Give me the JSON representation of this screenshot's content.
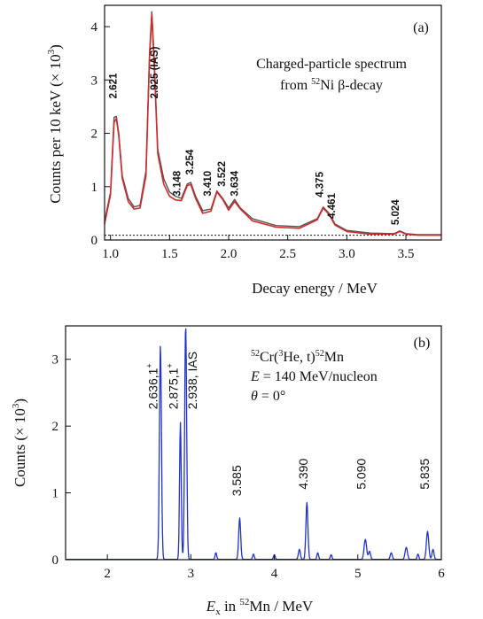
{
  "chart_data": [
    {
      "type": "line",
      "panel_label": "(a)",
      "title_line1": "Charged-particle spectrum",
      "title_line2_pre": "from ",
      "title_line2_sup": "52",
      "title_line2_post": "Ni β-decay",
      "xlabel": "Decay energy / MeV",
      "ylabel_text": "Counts per 10 keV (× 10",
      "ylabel_sup": "3",
      "ylabel_close": ")",
      "xlim": [
        0.95,
        3.8
      ],
      "ylim": [
        0,
        4.4
      ],
      "xticks": [
        1.0,
        1.5,
        2.0,
        2.5,
        3.0,
        3.5
      ],
      "xticklabels": [
        "1.0",
        "1.5",
        "2.0",
        "2.5",
        "3.0",
        "3.5"
      ],
      "yticks": [
        0,
        1,
        2,
        3,
        4
      ],
      "yticklabels": [
        "0",
        "1",
        "2",
        "3",
        "4"
      ],
      "background_level": 0.09,
      "series": [
        {
          "color": "#555555",
          "x": [
            0.95,
            1.0,
            1.03,
            1.05,
            1.07,
            1.1,
            1.15,
            1.2,
            1.25,
            1.3,
            1.33,
            1.35,
            1.37,
            1.4,
            1.45,
            1.5,
            1.55,
            1.6,
            1.65,
            1.68,
            1.72,
            1.78,
            1.85,
            1.9,
            1.95,
            2.0,
            2.05,
            2.1,
            2.2,
            2.4,
            2.6,
            2.75,
            2.8,
            2.85,
            2.9,
            3.0,
            3.2,
            3.4,
            3.45,
            3.5,
            3.6,
            3.8
          ],
          "y": [
            0.35,
            0.9,
            2.3,
            2.32,
            2.0,
            1.2,
            0.78,
            0.62,
            0.65,
            1.3,
            3.5,
            4.28,
            3.4,
            1.7,
            1.15,
            0.9,
            0.82,
            0.78,
            1.05,
            1.08,
            0.82,
            0.55,
            0.58,
            0.92,
            0.78,
            0.6,
            0.76,
            0.6,
            0.4,
            0.27,
            0.25,
            0.4,
            0.62,
            0.5,
            0.3,
            0.18,
            0.13,
            0.12,
            0.17,
            0.12,
            0.1,
            0.1
          ]
        },
        {
          "color": "#d22b2b",
          "x": [
            0.95,
            1.0,
            1.03,
            1.05,
            1.07,
            1.1,
            1.15,
            1.2,
            1.25,
            1.3,
            1.33,
            1.35,
            1.37,
            1.4,
            1.45,
            1.5,
            1.55,
            1.6,
            1.65,
            1.68,
            1.72,
            1.78,
            1.85,
            1.9,
            1.95,
            2.0,
            2.05,
            2.1,
            2.2,
            2.4,
            2.6,
            2.75,
            2.8,
            2.85,
            2.9,
            3.0,
            3.2,
            3.4,
            3.45,
            3.5,
            3.6,
            3.8
          ],
          "y": [
            0.3,
            0.85,
            2.2,
            2.28,
            1.95,
            1.15,
            0.72,
            0.58,
            0.6,
            1.2,
            3.4,
            4.22,
            3.3,
            1.62,
            1.05,
            0.82,
            0.75,
            0.74,
            1.02,
            1.04,
            0.78,
            0.5,
            0.54,
            0.9,
            0.76,
            0.56,
            0.72,
            0.58,
            0.36,
            0.24,
            0.22,
            0.38,
            0.6,
            0.48,
            0.28,
            0.16,
            0.11,
            0.11,
            0.16,
            0.11,
            0.09,
            0.09
          ]
        }
      ],
      "peak_labels": [
        {
          "text": "2.621",
          "x": 1.05,
          "y": 2.65
        },
        {
          "text": "2.925 (IAS)",
          "x": 1.4,
          "y": 2.65
        },
        {
          "text": "3.148",
          "x": 1.59,
          "y": 0.82
        },
        {
          "text": "3.254",
          "x": 1.7,
          "y": 1.22
        },
        {
          "text": "3.410",
          "x": 1.85,
          "y": 0.82
        },
        {
          "text": "3.522",
          "x": 1.97,
          "y": 1.0
        },
        {
          "text": "3.634",
          "x": 2.08,
          "y": 0.82
        },
        {
          "text": "4.375",
          "x": 2.8,
          "y": 0.8
        },
        {
          "text": "4.461",
          "x": 2.9,
          "y": 0.4
        },
        {
          "text": "5.024",
          "x": 3.44,
          "y": 0.28
        }
      ]
    },
    {
      "type": "line",
      "panel_label": "(b)",
      "reaction_sup1": "52",
      "reaction_mid1": "Cr(",
      "reaction_sup2": "3",
      "reaction_mid2": "He, t)",
      "reaction_sup3": "52",
      "reaction_end": "Mn",
      "energy_var": "E",
      "energy_rest": " = 140 MeV/nucleon",
      "angle_var": "θ",
      "angle_rest": " = 0°",
      "xlabel_var": "E",
      "xlabel_sub": "x",
      "xlabel_mid": " in ",
      "xlabel_sup": "52",
      "xlabel_end": "Mn / MeV",
      "ylabel_text": "Counts (× 10",
      "ylabel_sup": "3",
      "ylabel_close": ")",
      "xlim": [
        1.5,
        6.0
      ],
      "ylim": [
        0,
        3.5
      ],
      "xticks": [
        2,
        3,
        4,
        5,
        6
      ],
      "xticklabels": [
        "2",
        "3",
        "4",
        "5",
        "6"
      ],
      "yticks": [
        0,
        1,
        2,
        3
      ],
      "yticklabels": [
        "0",
        "1",
        "2",
        "3"
      ],
      "series": [
        {
          "color": "#2233cc",
          "peaks": [
            [
              2.636,
              3.2,
              0.012
            ],
            [
              2.875,
              2.05,
              0.01
            ],
            [
              2.938,
              3.5,
              0.012
            ],
            [
              3.3,
              0.1,
              0.01
            ],
            [
              3.585,
              0.62,
              0.012
            ],
            [
              3.75,
              0.08,
              0.01
            ],
            [
              4.0,
              0.07,
              0.01
            ],
            [
              4.3,
              0.15,
              0.012
            ],
            [
              4.39,
              0.85,
              0.012
            ],
            [
              4.52,
              0.1,
              0.01
            ],
            [
              4.68,
              0.07,
              0.01
            ],
            [
              5.09,
              0.3,
              0.015
            ],
            [
              5.14,
              0.12,
              0.012
            ],
            [
              5.4,
              0.1,
              0.012
            ],
            [
              5.58,
              0.18,
              0.014
            ],
            [
              5.72,
              0.08,
              0.01
            ],
            [
              5.835,
              0.42,
              0.014
            ],
            [
              5.9,
              0.15,
              0.012
            ]
          ]
        }
      ],
      "peak_labels": [
        {
          "text": "2.636,1",
          "sup": "+",
          "x": 2.6,
          "y": 2.25
        },
        {
          "text": "2.875,1",
          "sup": "+",
          "x": 2.84,
          "y": 2.25
        },
        {
          "text": "2.938, IAS",
          "sup": "",
          "x": 3.07,
          "y": 2.25
        },
        {
          "text": "3.585",
          "sup": "",
          "x": 3.6,
          "y": 0.95
        },
        {
          "text": "4.390",
          "sup": "",
          "x": 4.4,
          "y": 1.05
        },
        {
          "text": "5.090",
          "sup": "",
          "x": 5.09,
          "y": 1.05
        },
        {
          "text": "5.835",
          "sup": "",
          "x": 5.85,
          "y": 1.05
        }
      ]
    }
  ]
}
